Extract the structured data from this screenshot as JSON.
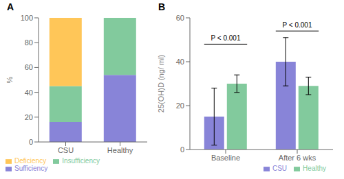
{
  "chart_data": [
    {
      "type": "bar",
      "title": "A",
      "stacked": true,
      "categories": [
        "CSU",
        "Healthy"
      ],
      "series": [
        {
          "name": "Sufficiency",
          "color": "#8884d8",
          "values": [
            16,
            54
          ]
        },
        {
          "name": "Insufficiency",
          "color": "#82ca9d",
          "values": [
            29,
            46
          ]
        },
        {
          "name": "Deficiency",
          "color": "#ffc658",
          "values": [
            55,
            0
          ]
        }
      ],
      "ylabel": "%",
      "ylim": [
        0,
        100
      ],
      "yticks": [
        0,
        20,
        40,
        60,
        80,
        100
      ],
      "grid": false,
      "legend": "lower left"
    },
    {
      "type": "bar",
      "title": "B",
      "categories": [
        "Baseline",
        "After 6 wks"
      ],
      "series": [
        {
          "name": "CSU",
          "color": "#8884d8",
          "values": [
            15,
            40
          ],
          "errors": [
            13,
            11
          ]
        },
        {
          "name": "Healthy",
          "color": "#82ca9d",
          "values": [
            30,
            29
          ],
          "errors": [
            4,
            4
          ]
        }
      ],
      "ylabel": "25(OH)D (ng/ ml)",
      "ylim": [
        0,
        60
      ],
      "yticks": [
        0,
        20,
        40,
        60
      ],
      "annotations": [
        {
          "text": "P < 0.001",
          "x": "Baseline",
          "y": 48
        },
        {
          "text": "P < 0.001",
          "x": "After 6 wks",
          "y": 54
        }
      ],
      "grid": false,
      "legend": "lower right"
    }
  ]
}
